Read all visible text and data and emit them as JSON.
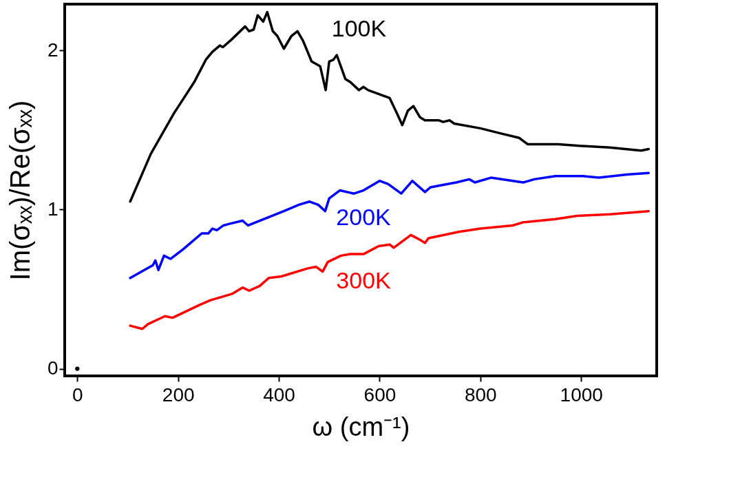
{
  "chart_data": {
    "type": "line",
    "xlabel": "ω  (cm⁻¹)",
    "ylabel": "Im(σₓₓ)/Re(σₓₓ)",
    "xlim": [
      -25,
      1150
    ],
    "ylim": [
      -0.045,
      2.29
    ],
    "xticks": [
      0,
      200,
      400,
      600,
      800,
      1000
    ],
    "yticks": [
      0,
      1,
      2
    ],
    "grid": false,
    "legend": false,
    "line_style": "solid",
    "marker": "none",
    "series": [
      {
        "name": "100K",
        "color": "#000000",
        "x": [
          105,
          146,
          191,
          232,
          255,
          268,
          283,
          289,
          307,
          333,
          341,
          350,
          358,
          369,
          377,
          388,
          397,
          410,
          425,
          437,
          448,
          465,
          482,
          493,
          500,
          508,
          515,
          532,
          542,
          559,
          568,
          577,
          620,
          635,
          645,
          656,
          667,
          680,
          690,
          718,
          726,
          739,
          748,
          800,
          838,
          877,
          894,
          928,
          954,
          996,
          1057,
          1119,
          1134
        ],
        "values": [
          1.05,
          1.35,
          1.6,
          1.8,
          1.94,
          1.99,
          2.03,
          2.02,
          2.07,
          2.15,
          2.12,
          2.13,
          2.22,
          2.18,
          2.24,
          2.12,
          2.09,
          2.01,
          2.09,
          2.12,
          2.06,
          1.93,
          1.9,
          1.75,
          1.93,
          1.94,
          1.97,
          1.82,
          1.8,
          1.75,
          1.77,
          1.75,
          1.7,
          1.6,
          1.53,
          1.62,
          1.65,
          1.58,
          1.56,
          1.56,
          1.55,
          1.56,
          1.54,
          1.51,
          1.48,
          1.45,
          1.41,
          1.41,
          1.41,
          1.4,
          1.39,
          1.37,
          1.38
        ]
      },
      {
        "name": "200K",
        "color": "#0000ff",
        "x": [
          105,
          150,
          155,
          161,
          172,
          185,
          210,
          247,
          260,
          268,
          277,
          290,
          302,
          328,
          339,
          410,
          440,
          461,
          478,
          492,
          500,
          521,
          549,
          568,
          600,
          617,
          643,
          665,
          690,
          701,
          752,
          778,
          789,
          821,
          885,
          907,
          949,
          1003,
          1035,
          1091,
          1134
        ],
        "values": [
          0.57,
          0.65,
          0.68,
          0.62,
          0.71,
          0.69,
          0.75,
          0.85,
          0.85,
          0.88,
          0.87,
          0.9,
          0.91,
          0.93,
          0.9,
          0.99,
          1.03,
          1.05,
          1.03,
          0.99,
          1.07,
          1.12,
          1.1,
          1.12,
          1.18,
          1.16,
          1.1,
          1.18,
          1.11,
          1.14,
          1.17,
          1.19,
          1.17,
          1.2,
          1.17,
          1.19,
          1.21,
          1.21,
          1.2,
          1.22,
          1.23
        ]
      },
      {
        "name": "300K",
        "color": "#ff0000",
        "x": [
          105,
          129,
          140,
          174,
          189,
          242,
          264,
          307,
          328,
          341,
          362,
          380,
          405,
          457,
          474,
          487,
          497,
          523,
          542,
          568,
          598,
          620,
          628,
          662,
          680,
          690,
          697,
          757,
          800,
          864,
          885,
          949,
          992,
          1057,
          1134
        ],
        "values": [
          0.27,
          0.25,
          0.28,
          0.33,
          0.32,
          0.4,
          0.43,
          0.47,
          0.51,
          0.49,
          0.52,
          0.57,
          0.58,
          0.63,
          0.64,
          0.61,
          0.67,
          0.71,
          0.72,
          0.72,
          0.77,
          0.78,
          0.76,
          0.84,
          0.81,
          0.79,
          0.82,
          0.86,
          0.88,
          0.9,
          0.92,
          0.94,
          0.96,
          0.97,
          0.99
        ]
      },
      {
        "type": "scatter",
        "marker": "circle",
        "color": "#000000",
        "x": [
          0
        ],
        "values": [
          0
        ]
      }
    ]
  }
}
